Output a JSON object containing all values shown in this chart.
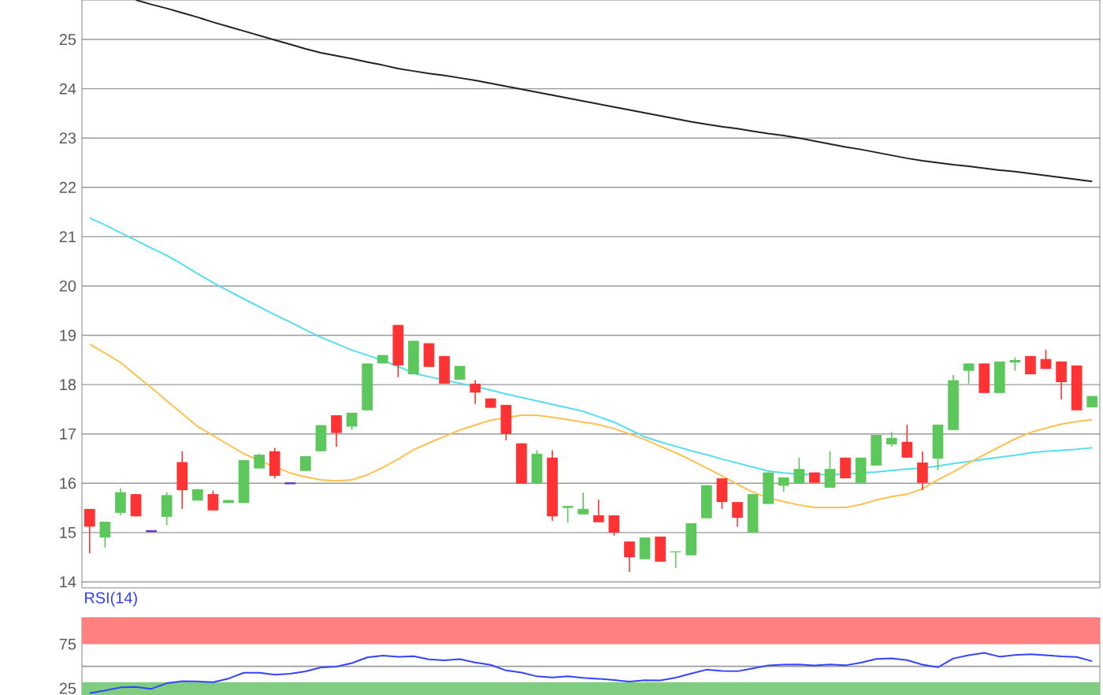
{
  "chart_data": [
    {
      "type": "candlestick",
      "categories": [
        null,
        null,
        null,
        null,
        null,
        null,
        null,
        null,
        null,
        null,
        null,
        null,
        null,
        null,
        null,
        null,
        null,
        null,
        null,
        null,
        null,
        null,
        null,
        null,
        null,
        null,
        null,
        null,
        null,
        null,
        null,
        null,
        null,
        null,
        null,
        null,
        null,
        null,
        null,
        null,
        null,
        null,
        null,
        null,
        null,
        null,
        null,
        null,
        null,
        null,
        null,
        null,
        null,
        null,
        null,
        null,
        null,
        null,
        null,
        null,
        null,
        null,
        null,
        null,
        null,
        null
      ],
      "ohlc": [
        [
          15.48,
          15.48,
          14.58,
          15.12
        ],
        [
          14.9,
          15.22,
          14.7,
          15.22
        ],
        [
          15.4,
          15.9,
          15.35,
          15.82
        ],
        [
          15.78,
          15.78,
          15.33,
          15.33
        ],
        [
          15.03,
          15.03,
          15.03,
          15.03
        ],
        [
          15.32,
          15.82,
          15.15,
          15.76
        ],
        [
          16.43,
          16.65,
          15.48,
          15.86
        ],
        [
          15.65,
          15.88,
          15.65,
          15.88
        ],
        [
          15.78,
          15.85,
          15.45,
          15.45
        ],
        [
          15.6,
          15.66,
          15.6,
          15.66
        ],
        [
          15.6,
          16.47,
          15.6,
          16.47
        ],
        [
          16.3,
          16.6,
          16.3,
          16.58
        ],
        [
          16.65,
          16.72,
          16.1,
          16.15
        ],
        [
          16.0,
          16.0,
          16.0,
          16.0
        ],
        [
          16.25,
          16.55,
          16.25,
          16.55
        ],
        [
          16.65,
          17.18,
          16.65,
          17.18
        ],
        [
          17.38,
          17.38,
          16.74,
          17.02
        ],
        [
          17.15,
          17.43,
          17.08,
          17.43
        ],
        [
          17.48,
          18.43,
          17.48,
          18.43
        ],
        [
          18.43,
          18.6,
          18.43,
          18.6
        ],
        [
          19.21,
          19.21,
          18.15,
          18.39
        ],
        [
          18.21,
          18.89,
          18.21,
          18.89
        ],
        [
          18.84,
          18.84,
          18.36,
          18.36
        ],
        [
          18.58,
          18.58,
          18.02,
          18.02
        ],
        [
          18.1,
          18.38,
          18.1,
          18.38
        ],
        [
          18.02,
          18.09,
          17.61,
          17.84
        ],
        [
          17.72,
          17.72,
          17.53,
          17.53
        ],
        [
          17.59,
          17.59,
          16.87,
          17.0
        ],
        [
          16.81,
          16.81,
          15.99,
          15.99
        ],
        [
          15.99,
          16.67,
          15.99,
          16.6
        ],
        [
          16.52,
          16.67,
          15.24,
          15.33
        ],
        [
          15.5,
          15.54,
          15.2,
          15.54
        ],
        [
          15.37,
          15.81,
          15.37,
          15.48
        ],
        [
          15.35,
          15.67,
          15.21,
          15.21
        ],
        [
          15.35,
          15.35,
          14.94,
          15.0
        ],
        [
          14.82,
          14.82,
          14.2,
          14.5
        ],
        [
          14.46,
          14.9,
          14.46,
          14.9
        ],
        [
          14.92,
          14.92,
          14.41,
          14.41
        ],
        [
          14.6,
          14.62,
          14.28,
          14.62
        ],
        [
          14.54,
          15.19,
          14.54,
          15.19
        ],
        [
          15.29,
          15.96,
          15.29,
          15.96
        ],
        [
          16.1,
          16.1,
          15.48,
          15.62
        ],
        [
          15.62,
          15.62,
          15.12,
          15.3
        ],
        [
          15.0,
          15.78,
          15.0,
          15.78
        ],
        [
          15.58,
          16.22,
          15.58,
          16.22
        ],
        [
          15.95,
          16.12,
          15.83,
          16.12
        ],
        [
          15.99,
          16.52,
          15.99,
          16.29
        ],
        [
          16.22,
          16.22,
          16.01,
          16.01
        ],
        [
          15.91,
          16.65,
          15.91,
          16.29
        ],
        [
          16.52,
          16.52,
          16.1,
          16.1
        ],
        [
          16.01,
          16.52,
          16.01,
          16.52
        ],
        [
          16.36,
          16.98,
          16.36,
          16.98
        ],
        [
          16.79,
          17.04,
          16.74,
          16.92
        ],
        [
          16.84,
          17.19,
          16.52,
          16.52
        ],
        [
          16.42,
          16.65,
          15.86,
          16.01
        ],
        [
          16.5,
          17.19,
          16.26,
          17.19
        ],
        [
          17.08,
          18.2,
          17.08,
          18.09
        ],
        [
          18.28,
          18.43,
          18.02,
          18.43
        ],
        [
          18.43,
          18.43,
          17.83,
          17.83
        ],
        [
          17.83,
          18.47,
          17.83,
          18.47
        ],
        [
          18.45,
          18.55,
          18.28,
          18.5
        ],
        [
          18.58,
          18.58,
          18.21,
          18.21
        ],
        [
          18.52,
          18.71,
          18.32,
          18.32
        ],
        [
          18.47,
          18.47,
          17.7,
          18.05
        ],
        [
          18.39,
          18.39,
          17.48,
          17.48
        ],
        [
          17.54,
          17.77,
          17.54,
          17.77
        ]
      ],
      "colors": [
        "#ff3333",
        "#5cc85c",
        "#5cc85c",
        "#ff3333",
        "#6633cc",
        "#5cc85c",
        "#ff3333",
        "#5cc85c",
        "#ff3333",
        "#5cc85c",
        "#5cc85c",
        "#5cc85c",
        "#ff3333",
        "#6633cc",
        "#5cc85c",
        "#5cc85c",
        "#ff3333",
        "#5cc85c",
        "#5cc85c",
        "#5cc85c",
        "#ff3333",
        "#5cc85c",
        "#ff3333",
        "#ff3333",
        "#5cc85c",
        "#ff3333",
        "#ff3333",
        "#ff3333",
        "#ff3333",
        "#5cc85c",
        "#ff3333",
        "#5cc85c",
        "#5cc85c",
        "#ff3333",
        "#ff3333",
        "#ff3333",
        "#5cc85c",
        "#ff3333",
        "#5cc85c",
        "#5cc85c",
        "#5cc85c",
        "#ff3333",
        "#ff3333",
        "#5cc85c",
        "#5cc85c",
        "#5cc85c",
        "#5cc85c",
        "#ff3333",
        "#5cc85c",
        "#ff3333",
        "#5cc85c",
        "#5cc85c",
        "#5cc85c",
        "#ff3333",
        "#ff3333",
        "#5cc85c",
        "#5cc85c",
        "#5cc85c",
        "#ff3333",
        "#5cc85c",
        "#5cc85c",
        "#ff3333",
        "#ff3333",
        "#ff3333",
        "#ff3333",
        "#5cc85c"
      ],
      "series": [
        {
          "type": "line",
          "color": "#222222",
          "values": [
            null,
            null,
            null,
            25.8,
            25.71,
            25.63,
            25.54,
            25.45,
            25.35,
            25.26,
            25.17,
            25.08,
            24.99,
            24.9,
            24.81,
            24.73,
            24.67,
            24.61,
            24.54,
            24.48,
            24.41,
            24.36,
            24.31,
            24.27,
            24.22,
            24.17,
            24.11,
            24.05,
            23.99,
            23.93,
            23.87,
            23.81,
            23.75,
            23.69,
            23.63,
            23.57,
            23.51,
            23.45,
            23.39,
            23.33,
            23.28,
            23.23,
            23.19,
            23.14,
            23.09,
            23.05,
            23.0,
            22.94,
            22.88,
            22.82,
            22.77,
            22.71,
            22.65,
            22.59,
            22.54,
            22.5,
            22.46,
            22.43,
            22.39,
            22.35,
            22.32,
            22.28,
            22.24,
            22.2,
            22.16,
            22.12
          ]
        },
        {
          "type": "line",
          "color": "#55ddf0",
          "values": [
            21.38,
            21.24,
            21.08,
            20.93,
            20.77,
            20.62,
            20.44,
            20.25,
            20.07,
            19.9,
            19.74,
            19.58,
            19.42,
            19.27,
            19.11,
            18.96,
            18.83,
            18.7,
            18.6,
            18.49,
            18.37,
            18.23,
            18.16,
            18.09,
            18.03,
            17.96,
            17.89,
            17.81,
            17.74,
            17.67,
            17.6,
            17.53,
            17.46,
            17.35,
            17.24,
            17.09,
            16.94,
            16.84,
            16.75,
            16.66,
            16.58,
            16.49,
            16.41,
            16.33,
            16.25,
            16.21,
            16.19,
            16.17,
            16.18,
            16.19,
            16.21,
            16.23,
            16.26,
            16.29,
            16.31,
            16.35,
            16.4,
            16.44,
            16.49,
            16.53,
            16.57,
            16.62,
            16.65,
            16.67,
            16.69,
            16.72
          ]
        },
        {
          "type": "line",
          "color": "#ffc04d",
          "values": [
            18.82,
            18.64,
            18.45,
            18.19,
            17.94,
            17.67,
            17.41,
            17.15,
            16.97,
            16.78,
            16.6,
            16.46,
            16.33,
            16.21,
            16.13,
            16.07,
            16.05,
            16.07,
            16.17,
            16.32,
            16.49,
            16.68,
            16.82,
            16.95,
            17.08,
            17.18,
            17.28,
            17.33,
            17.38,
            17.38,
            17.34,
            17.29,
            17.24,
            17.19,
            17.11,
            17.0,
            16.89,
            16.75,
            16.62,
            16.47,
            16.31,
            16.15,
            15.98,
            15.82,
            15.7,
            15.63,
            15.56,
            15.51,
            15.51,
            15.51,
            15.57,
            15.66,
            15.73,
            15.78,
            15.89,
            16.07,
            16.23,
            16.41,
            16.58,
            16.74,
            16.9,
            17.03,
            17.12,
            17.2,
            17.25,
            17.29
          ]
        }
      ],
      "ylim": [
        13.88,
        25.8
      ],
      "yticks": [
        14,
        15,
        16,
        17,
        18,
        19,
        20,
        21,
        22,
        23,
        24,
        25
      ],
      "grid": "y"
    },
    {
      "type": "line",
      "title": "RSI(14)",
      "categories": [
        null,
        null,
        null,
        null,
        null,
        null,
        null,
        null,
        null,
        null,
        null,
        null,
        null,
        null,
        null,
        null,
        null,
        null,
        null,
        null,
        null,
        null,
        null,
        null,
        null,
        null,
        null,
        null,
        null,
        null,
        null,
        null,
        null,
        null,
        null,
        null,
        null,
        null,
        null,
        null,
        null,
        null,
        null,
        null,
        null,
        null,
        null,
        null,
        null,
        null,
        null,
        null,
        null,
        null,
        null,
        null,
        null,
        null,
        null,
        null,
        null,
        null,
        null,
        null,
        null,
        null
      ],
      "series": [
        {
          "color": "#3344ff",
          "values": [
            19.5,
            22.6,
            26.1,
            26.6,
            24.5,
            30.8,
            33.1,
            32.9,
            32.0,
            36.1,
            42.7,
            42.7,
            40.5,
            41.6,
            44.3,
            48.8,
            49.7,
            53.7,
            60.1,
            62.1,
            60.7,
            61.4,
            57.9,
            56.8,
            58.1,
            54.4,
            51.6,
            45.3,
            42.9,
            38.6,
            37.4,
            38.7,
            36.9,
            35.9,
            34.4,
            32.6,
            34.3,
            34.1,
            37.2,
            41.8,
            46.2,
            44.7,
            44.4,
            47.6,
            50.9,
            51.8,
            52.0,
            50.9,
            52.1,
            51.1,
            54.1,
            58.3,
            59.1,
            57.0,
            51.8,
            48.9,
            58.9,
            62.5,
            65.3,
            60.9,
            62.9,
            63.7,
            62.5,
            61.3,
            60.5,
            55.8
          ]
        }
      ],
      "ylim": [
        17.5,
        105
      ],
      "yticks": [
        25,
        75
      ],
      "ref_lines": [
        {
          "axis": "y",
          "value": 50,
          "color": "#999999"
        }
      ],
      "bands": [
        {
          "axis": "y",
          "from": 75,
          "to": 105,
          "color": "#ff8080"
        },
        {
          "axis": "y",
          "from": 17.5,
          "to": 32,
          "color": "#80cc80"
        }
      ]
    }
  ]
}
